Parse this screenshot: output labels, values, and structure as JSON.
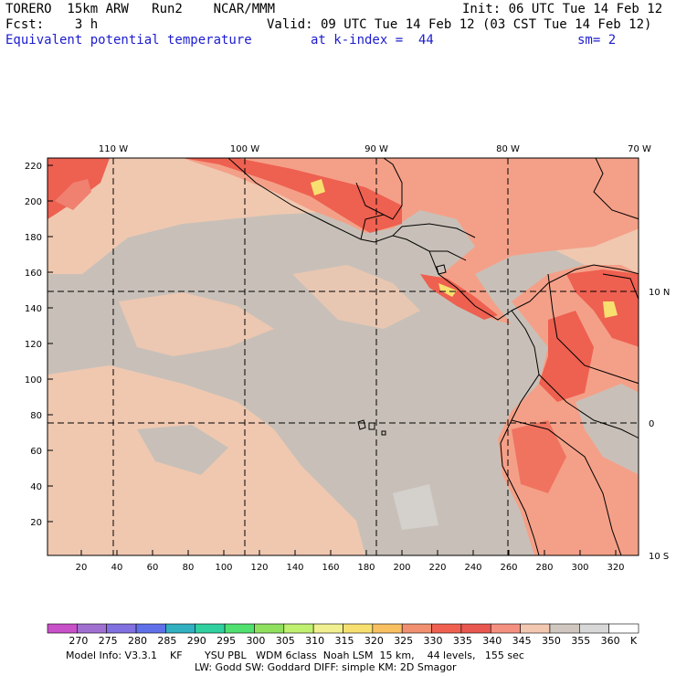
{
  "header": {
    "model": "TORERO  15km ARW   Run2    NCAR/MMM",
    "init": "Init: 06 UTC Tue 14 Feb 12",
    "fcst": "Fcst:    3 h",
    "valid": "Valid: 09 UTC Tue 14 Feb 12 (03 CST Tue 14 Feb 12)",
    "field": "Equivalent potential temperature",
    "level": "at k-index =  44",
    "smooth": "sm= 2"
  },
  "map": {
    "lon_labels": [
      "110 W",
      "100 W",
      "90 W",
      "80 W",
      "70 W"
    ],
    "lat_labels": [
      "10 N",
      "0",
      "10 S"
    ],
    "x_ticks": [
      "20",
      "40",
      "60",
      "80",
      "100",
      "120",
      "140",
      "160",
      "180",
      "200",
      "220",
      "240",
      "260",
      "280",
      "300",
      "320"
    ],
    "y_ticks": [
      "220",
      "200",
      "180",
      "160",
      "140",
      "120",
      "100",
      "80",
      "60",
      "40",
      "20"
    ],
    "colors": {
      "ocean": "#c8c0b8",
      "warm_ocean": "#f0c8b0",
      "land_warm": "#f4a088",
      "land_hot": "#ee6050",
      "land_peak": "#f08070"
    }
  },
  "colorbar": {
    "labels": [
      "270",
      "275",
      "280",
      "285",
      "290",
      "295",
      "300",
      "305",
      "310",
      "315",
      "320",
      "325",
      "330",
      "335",
      "340",
      "345",
      "350",
      "355",
      "360",
      "K"
    ],
    "colors": [
      "#c850c8",
      "#a070d0",
      "#8070e0",
      "#6070e8",
      "#30b0c0",
      "#30d0a0",
      "#50e070",
      "#90e060",
      "#c0f070",
      "#f0f090",
      "#f8e070",
      "#f8c060",
      "#f09070",
      "#f06050",
      "#e85850",
      "#f49080",
      "#f2c8b0",
      "#d0c8c0",
      "#d8d8d8",
      "#ffffff"
    ]
  },
  "footer": {
    "line1": "Model Info: V3.3.1    KF       YSU PBL   WDM 6class  Noah LSM  15 km,    44 levels,   155 sec",
    "line2": "LW: Godd SW: Goddard DIFF: simple KM: 2D Smagor"
  }
}
